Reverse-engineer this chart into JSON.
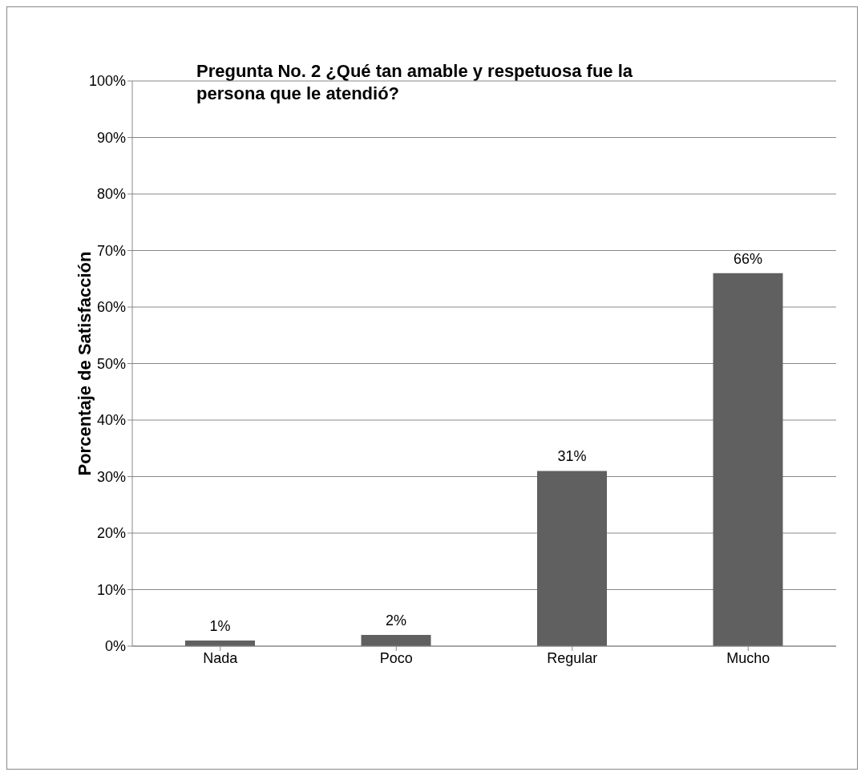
{
  "chart_data": {
    "type": "bar",
    "title": "Pregunta No. 2 ¿Qué tan amable y respetuosa fue la persona que le atendió?",
    "ylabel": "Porcentaje de Satisfacción",
    "categories": [
      "Nada",
      "Poco",
      "Regular",
      "Mucho"
    ],
    "values": [
      1,
      2,
      31,
      66
    ],
    "value_labels": [
      "1%",
      "2%",
      "31%",
      "66%"
    ],
    "color": "#606060",
    "ylim": [
      0,
      100
    ],
    "yticks": [
      {
        "value": 0,
        "label": "0%"
      },
      {
        "value": 10,
        "label": "10%"
      },
      {
        "value": 20,
        "label": "20%"
      },
      {
        "value": 30,
        "label": "30%"
      },
      {
        "value": 40,
        "label": "40%"
      },
      {
        "value": 50,
        "label": "50%"
      },
      {
        "value": 60,
        "label": "60%"
      },
      {
        "value": 70,
        "label": "70%"
      },
      {
        "value": 80,
        "label": "80%"
      },
      {
        "value": 90,
        "label": "90%"
      },
      {
        "value": 100,
        "label": "100%"
      }
    ],
    "grid": "y",
    "legend": false
  }
}
